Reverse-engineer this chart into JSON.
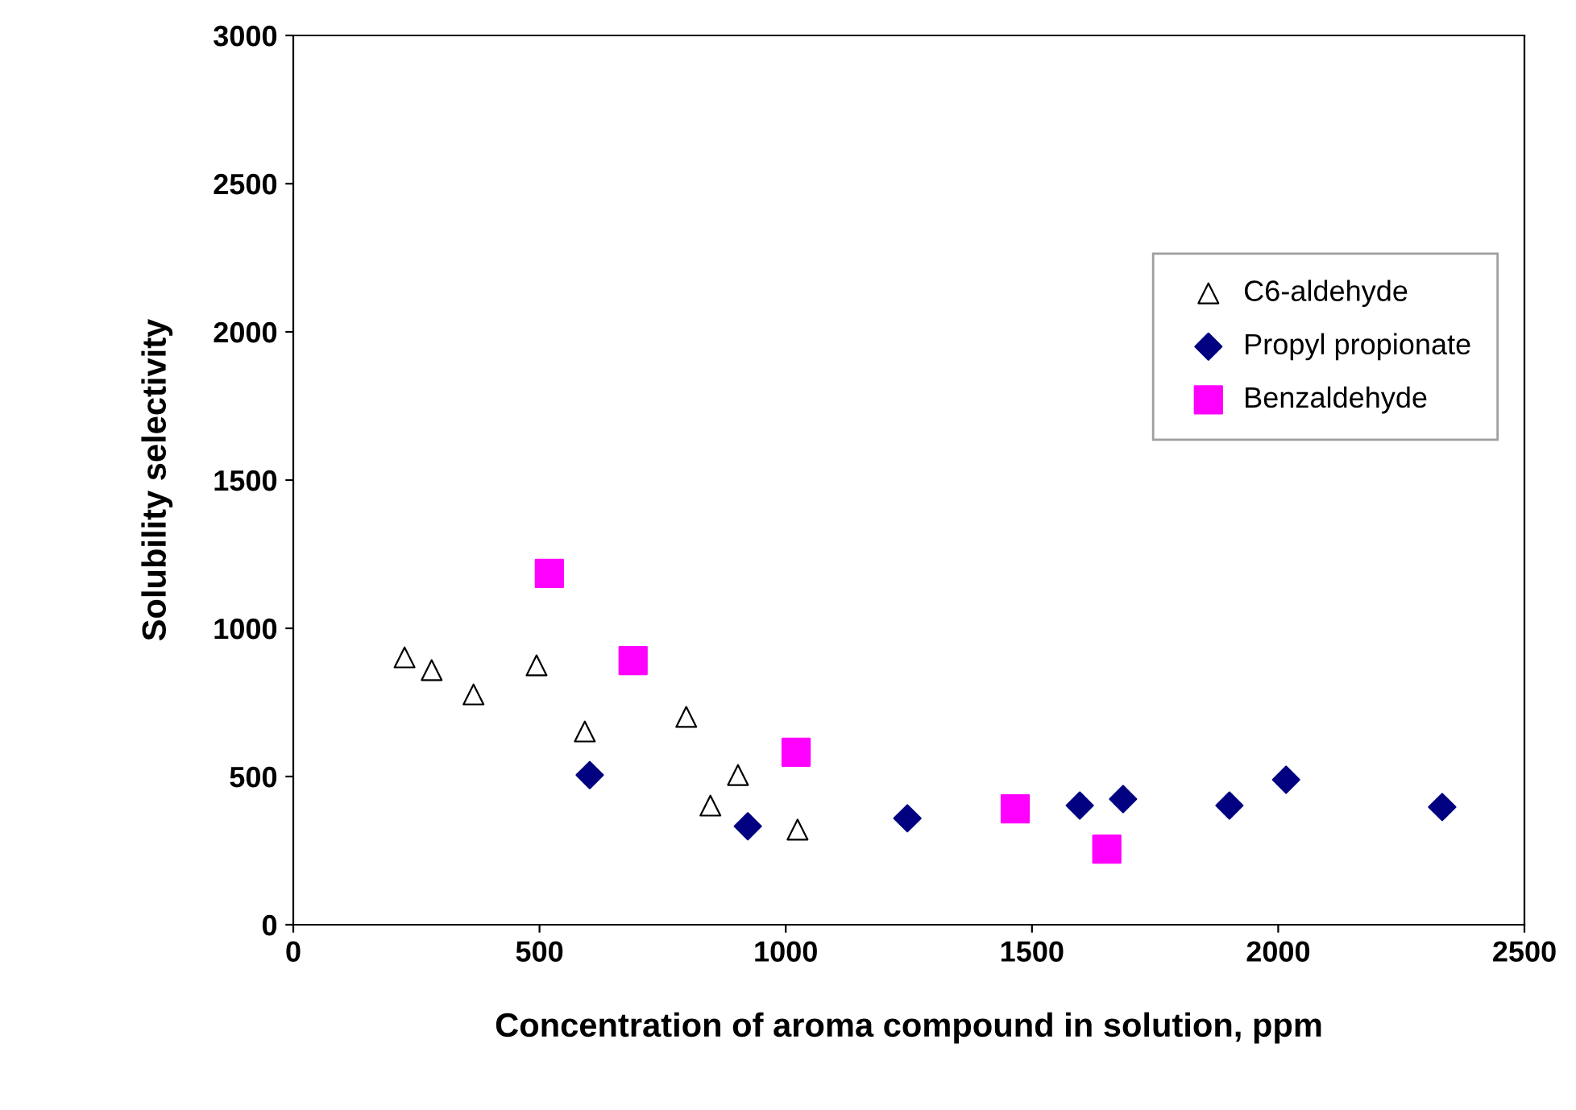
{
  "chart_data": {
    "type": "scatter",
    "xlabel": "Concentration of aroma compound in solution, ppm",
    "ylabel": "Solubility selectivity",
    "xlim": [
      0,
      2500
    ],
    "xticks": [
      0,
      500,
      1000,
      1500,
      2000,
      2500
    ],
    "ylim": [
      0,
      3000
    ],
    "yticks": [
      0,
      500,
      1000,
      1500,
      2000,
      2500,
      3000
    ],
    "grid": false,
    "legend": "right",
    "series": [
      {
        "name": "C6-aldehyde",
        "color": "#000000",
        "marker": "triangle",
        "x": [
          226,
          281,
          366,
          494,
          592,
          798,
          847,
          903,
          1024
        ],
        "values": [
          902,
          859,
          777,
          875,
          652,
          701,
          402,
          505,
          321
        ]
      },
      {
        "name": "Propyl propionate",
        "color": "#000080",
        "marker": "diamond",
        "x": [
          602,
          923,
          1247,
          1597,
          1685,
          1901,
          2016,
          2333
        ],
        "values": [
          505,
          332,
          359,
          402,
          424,
          402,
          489,
          397
        ]
      },
      {
        "name": "Benzaldehyde",
        "color": "#ff00ff",
        "marker": "square",
        "x": [
          520,
          690,
          1021,
          1466,
          1652
        ],
        "values": [
          1185,
          891,
          582,
          391,
          255
        ]
      }
    ]
  }
}
